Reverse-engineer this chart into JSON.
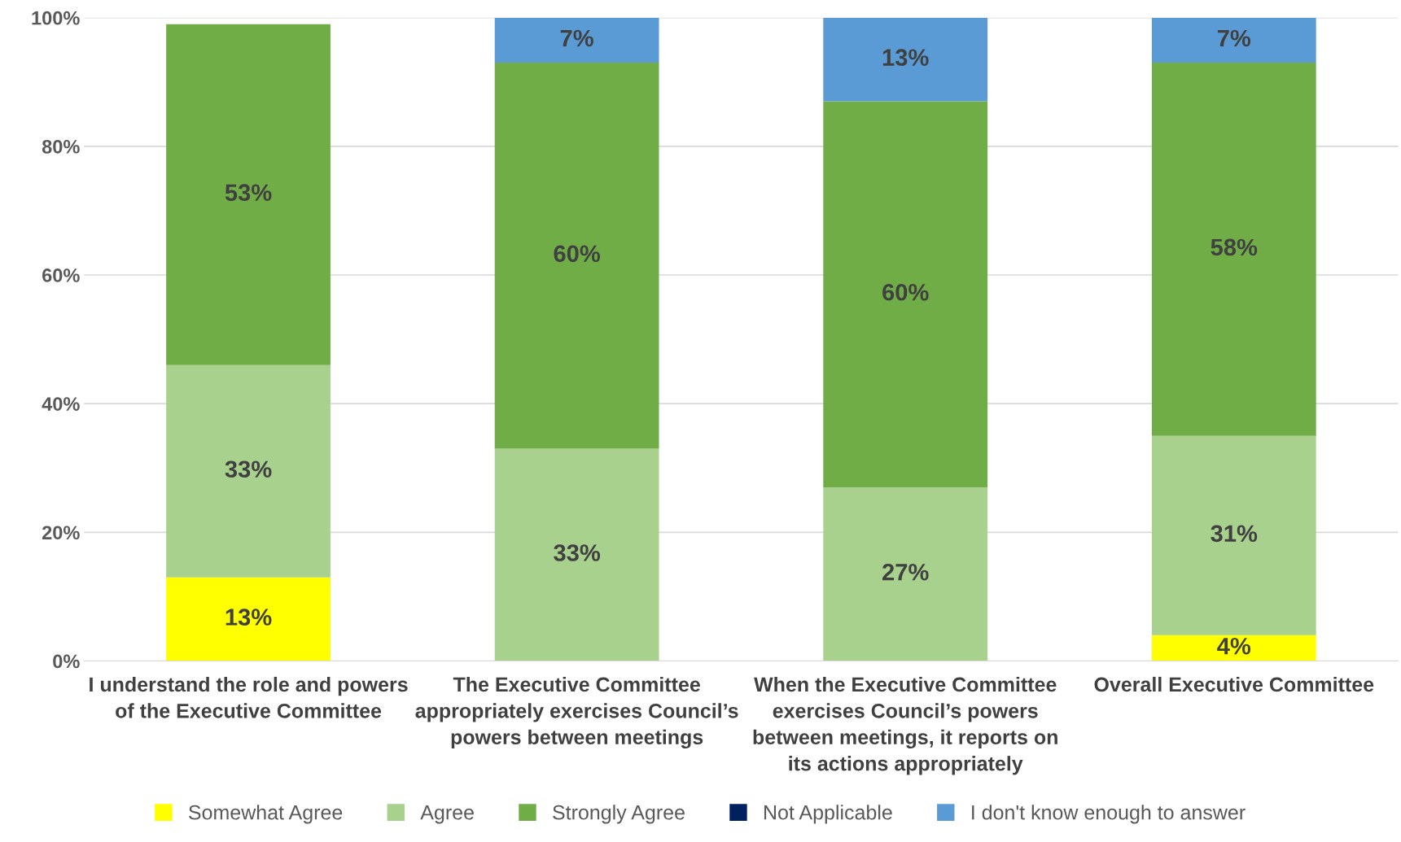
{
  "chart_data": {
    "type": "bar",
    "stacked": true,
    "categories": [
      "I understand the role and powers of the Executive Committee",
      "The Executive Committee appropriately exercises Council’s powers between meetings",
      "When the Executive Committee exercises Council’s powers between meetings, it reports on its actions appropriately",
      "Overall Executive Committee"
    ],
    "series": [
      {
        "name": "Somewhat Agree",
        "color": "#ffff00",
        "values": [
          13,
          null,
          null,
          4
        ],
        "value_labels": [
          "13%",
          null,
          null,
          "4%"
        ]
      },
      {
        "name": "Agree",
        "color": "#a9d18e",
        "values": [
          33,
          33,
          27,
          31
        ],
        "value_labels": [
          "33%",
          "33%",
          "27%",
          "31%"
        ]
      },
      {
        "name": "Strongly Agree",
        "color": "#70ad47",
        "values": [
          53,
          60,
          60,
          58
        ],
        "value_labels": [
          "53%",
          "60%",
          "60%",
          "58%"
        ]
      },
      {
        "name": "Not Applicable",
        "color": "#002060",
        "values": [
          null,
          null,
          null,
          null
        ]
      },
      {
        "name": "I don't know enough to answer",
        "color": "#5b9bd5",
        "values": [
          null,
          7,
          13,
          7
        ],
        "value_labels": [
          null,
          "7%",
          "13%",
          "7%"
        ]
      }
    ],
    "ylim": [
      0,
      100
    ],
    "yticks": [
      {
        "value": 0,
        "label": "0%"
      },
      {
        "value": 20,
        "label": "20%"
      },
      {
        "value": 40,
        "label": "40%"
      },
      {
        "value": 60,
        "label": "60%"
      },
      {
        "value": 80,
        "label": "80%"
      },
      {
        "value": 100,
        "label": "100%"
      }
    ],
    "grid": "y",
    "legend": "bottom"
  }
}
